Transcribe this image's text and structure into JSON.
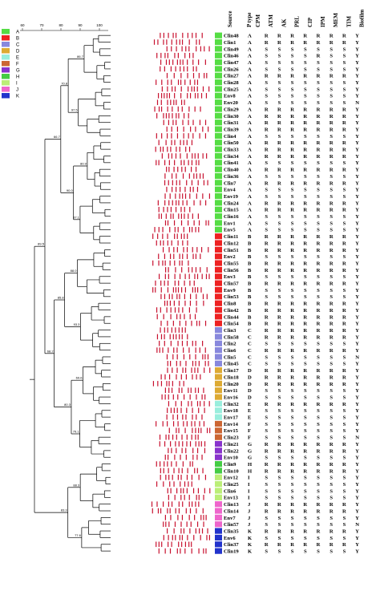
{
  "headers": [
    "Source",
    "P type",
    "CPM",
    "ATM",
    "AK",
    "PRL",
    "CIP",
    "IPM",
    "MEM",
    "TIM",
    "Biofilm"
  ],
  "legend": [
    {
      "label": "A",
      "color": "#55dd44"
    },
    {
      "label": "B",
      "color": "#ee2222"
    },
    {
      "label": "C",
      "color": "#8888dd"
    },
    {
      "label": "D",
      "color": "#ddaa33"
    },
    {
      "label": "E",
      "color": "#99eedd"
    },
    {
      "label": "F",
      "color": "#cc6633"
    },
    {
      "label": "G",
      "color": "#8833cc"
    },
    {
      "label": "H",
      "color": "#44cc44"
    },
    {
      "label": "I",
      "color": "#bbee77"
    },
    {
      "label": "J",
      "color": "#ee66cc"
    },
    {
      "label": "K",
      "color": "#2233cc"
    }
  ],
  "rows": [
    {
      "src": "Clin48",
      "p": "A",
      "v": [
        "R",
        "R",
        "R",
        "R",
        "R",
        "R",
        "R",
        "Y"
      ]
    },
    {
      "src": "Clin1",
      "p": "A",
      "v": [
        "R",
        "R",
        "R",
        "R",
        "R",
        "R",
        "R",
        "Y"
      ]
    },
    {
      "src": "Clin49",
      "p": "A",
      "v": [
        "S",
        "S",
        "S",
        "S",
        "S",
        "S",
        "S",
        "Y"
      ]
    },
    {
      "src": "Clin46",
      "p": "A",
      "v": [
        "S",
        "S",
        "S",
        "S",
        "R",
        "S",
        "S",
        "Y"
      ]
    },
    {
      "src": "Clin47",
      "p": "A",
      "v": [
        "S",
        "S",
        "S",
        "S",
        "S",
        "S",
        "S",
        "Y"
      ]
    },
    {
      "src": "Clin26",
      "p": "A",
      "v": [
        "S",
        "S",
        "S",
        "S",
        "S",
        "S",
        "S",
        "Y"
      ]
    },
    {
      "src": "Clin27",
      "p": "A",
      "v": [
        "R",
        "R",
        "R",
        "R",
        "R",
        "R",
        "R",
        "Y"
      ]
    },
    {
      "src": "Clin28",
      "p": "A",
      "v": [
        "S",
        "S",
        "S",
        "S",
        "S",
        "S",
        "S",
        "Y"
      ]
    },
    {
      "src": "Clin25",
      "p": "A",
      "v": [
        "S",
        "S",
        "S",
        "S",
        "S",
        "S",
        "S",
        "Y"
      ]
    },
    {
      "src": "Env8",
      "p": "A",
      "v": [
        "S",
        "S",
        "S",
        "S",
        "S",
        "S",
        "S",
        "Y"
      ]
    },
    {
      "src": "Env20",
      "p": "A",
      "v": [
        "S",
        "S",
        "S",
        "S",
        "S",
        "S",
        "S",
        "N"
      ]
    },
    {
      "src": "Clin29",
      "p": "A",
      "v": [
        "R",
        "R",
        "R",
        "R",
        "R",
        "R",
        "R",
        "Y"
      ]
    },
    {
      "src": "Clin30",
      "p": "A",
      "v": [
        "R",
        "R",
        "R",
        "R",
        "R",
        "R",
        "R",
        "Y"
      ]
    },
    {
      "src": "Clin31",
      "p": "A",
      "v": [
        "R",
        "R",
        "R",
        "R",
        "R",
        "R",
        "R",
        "Y"
      ]
    },
    {
      "src": "Clin39",
      "p": "A",
      "v": [
        "R",
        "R",
        "R",
        "R",
        "R",
        "R",
        "R",
        "Y"
      ]
    },
    {
      "src": "Clin4",
      "p": "A",
      "v": [
        "S",
        "S",
        "S",
        "S",
        "S",
        "S",
        "S",
        "Y"
      ]
    },
    {
      "src": "Clin50",
      "p": "A",
      "v": [
        "R",
        "R",
        "R",
        "R",
        "R",
        "R",
        "R",
        "Y"
      ]
    },
    {
      "src": "Clin33",
      "p": "A",
      "v": [
        "R",
        "R",
        "R",
        "R",
        "R",
        "R",
        "R",
        "Y"
      ]
    },
    {
      "src": "Clin34",
      "p": "A",
      "v": [
        "R",
        "R",
        "R",
        "R",
        "R",
        "R",
        "R",
        "Y"
      ]
    },
    {
      "src": "Clin41",
      "p": "A",
      "v": [
        "S",
        "S",
        "S",
        "S",
        "S",
        "S",
        "S",
        "Y"
      ]
    },
    {
      "src": "Clin40",
      "p": "A",
      "v": [
        "R",
        "R",
        "R",
        "R",
        "R",
        "R",
        "R",
        "Y"
      ]
    },
    {
      "src": "Clin36",
      "p": "A",
      "v": [
        "S",
        "S",
        "S",
        "S",
        "S",
        "S",
        "S",
        "Y"
      ]
    },
    {
      "src": "Clin7",
      "p": "A",
      "v": [
        "R",
        "R",
        "R",
        "R",
        "R",
        "R",
        "R",
        "Y"
      ]
    },
    {
      "src": "Env4",
      "p": "A",
      "v": [
        "S",
        "S",
        "S",
        "S",
        "S",
        "S",
        "S",
        "Y"
      ]
    },
    {
      "src": "Env19",
      "p": "A",
      "v": [
        "S",
        "S",
        "S",
        "S",
        "S",
        "S",
        "S",
        "Y"
      ]
    },
    {
      "src": "Clin24",
      "p": "A",
      "v": [
        "R",
        "R",
        "R",
        "R",
        "R",
        "R",
        "R",
        "Y"
      ]
    },
    {
      "src": "Clin15",
      "p": "A",
      "v": [
        "R",
        "R",
        "R",
        "R",
        "R",
        "R",
        "R",
        "Y"
      ]
    },
    {
      "src": "Clin16",
      "p": "A",
      "v": [
        "S",
        "S",
        "S",
        "S",
        "S",
        "S",
        "S",
        "Y"
      ]
    },
    {
      "src": "Env1",
      "p": "A",
      "v": [
        "S",
        "S",
        "S",
        "S",
        "S",
        "S",
        "S",
        "Y"
      ]
    },
    {
      "src": "Env5",
      "p": "A",
      "v": [
        "S",
        "S",
        "S",
        "S",
        "S",
        "S",
        "S",
        "Y"
      ]
    },
    {
      "src": "Clin11",
      "p": "B",
      "v": [
        "R",
        "R",
        "R",
        "R",
        "R",
        "R",
        "R",
        "Y"
      ]
    },
    {
      "src": "Clin12",
      "p": "B",
      "v": [
        "R",
        "R",
        "R",
        "R",
        "R",
        "R",
        "R",
        "Y"
      ]
    },
    {
      "src": "Clin51",
      "p": "B",
      "v": [
        "R",
        "R",
        "R",
        "R",
        "R",
        "R",
        "R",
        "Y"
      ]
    },
    {
      "src": "Env2",
      "p": "B",
      "v": [
        "S",
        "S",
        "S",
        "S",
        "S",
        "S",
        "S",
        "Y"
      ]
    },
    {
      "src": "Clin55",
      "p": "B",
      "v": [
        "R",
        "R",
        "R",
        "R",
        "R",
        "R",
        "R",
        "Y"
      ]
    },
    {
      "src": "Clin56",
      "p": "B",
      "v": [
        "R",
        "R",
        "R",
        "R",
        "R",
        "R",
        "R",
        "Y"
      ]
    },
    {
      "src": "Env3",
      "p": "B",
      "v": [
        "S",
        "S",
        "S",
        "S",
        "S",
        "S",
        "S",
        "Y"
      ]
    },
    {
      "src": "Clin57",
      "p": "B",
      "v": [
        "R",
        "R",
        "R",
        "R",
        "R",
        "R",
        "R",
        "Y"
      ]
    },
    {
      "src": "Env9",
      "p": "B",
      "v": [
        "S",
        "S",
        "S",
        "S",
        "S",
        "S",
        "S",
        "Y"
      ]
    },
    {
      "src": "Clin53",
      "p": "B",
      "v": [
        "S",
        "S",
        "S",
        "S",
        "S",
        "S",
        "S",
        "Y"
      ]
    },
    {
      "src": "Clin8",
      "p": "B",
      "v": [
        "R",
        "R",
        "R",
        "R",
        "R",
        "R",
        "R",
        "Y"
      ]
    },
    {
      "src": "Clin42",
      "p": "B",
      "v": [
        "R",
        "R",
        "R",
        "R",
        "R",
        "R",
        "R",
        "Y"
      ]
    },
    {
      "src": "Clin44",
      "p": "B",
      "v": [
        "R",
        "R",
        "R",
        "R",
        "R",
        "R",
        "R",
        "Y"
      ]
    },
    {
      "src": "Clin54",
      "p": "B",
      "v": [
        "R",
        "R",
        "R",
        "R",
        "R",
        "R",
        "R",
        "Y"
      ]
    },
    {
      "src": "Clin3",
      "p": "C",
      "v": [
        "R",
        "R",
        "R",
        "R",
        "R",
        "R",
        "R",
        "Y"
      ]
    },
    {
      "src": "Clin58",
      "p": "C",
      "v": [
        "R",
        "R",
        "R",
        "R",
        "R",
        "R",
        "R",
        "Y"
      ]
    },
    {
      "src": "Clin2",
      "p": "C",
      "v": [
        "S",
        "S",
        "S",
        "S",
        "S",
        "S",
        "S",
        "Y"
      ]
    },
    {
      "src": "Clin6",
      "p": "C",
      "v": [
        "R",
        "R",
        "R",
        "R",
        "R",
        "R",
        "R",
        "Y"
      ]
    },
    {
      "src": "Clin5",
      "p": "C",
      "v": [
        "S",
        "S",
        "S",
        "S",
        "S",
        "S",
        "S",
        "N"
      ]
    },
    {
      "src": "Clin45",
      "p": "C",
      "v": [
        "S",
        "S",
        "S",
        "S",
        "S",
        "S",
        "S",
        "Y"
      ]
    },
    {
      "src": "Clin17",
      "p": "D",
      "v": [
        "R",
        "R",
        "R",
        "R",
        "R",
        "R",
        "R",
        "Y"
      ]
    },
    {
      "src": "Clin18",
      "p": "D",
      "v": [
        "R",
        "R",
        "R",
        "R",
        "R",
        "R",
        "R",
        "Y"
      ]
    },
    {
      "src": "Clin20",
      "p": "D",
      "v": [
        "R",
        "R",
        "R",
        "R",
        "R",
        "R",
        "R",
        "Y"
      ]
    },
    {
      "src": "Env11",
      "p": "D",
      "v": [
        "S",
        "S",
        "S",
        "S",
        "S",
        "S",
        "S",
        "Y"
      ]
    },
    {
      "src": "Env16",
      "p": "D",
      "v": [
        "S",
        "S",
        "S",
        "S",
        "S",
        "S",
        "S",
        "Y"
      ]
    },
    {
      "src": "Clin32",
      "p": "E",
      "v": [
        "R",
        "R",
        "R",
        "R",
        "R",
        "R",
        "R",
        "Y"
      ]
    },
    {
      "src": "Env18",
      "p": "E",
      "v": [
        "S",
        "S",
        "S",
        "S",
        "S",
        "S",
        "S",
        "Y"
      ]
    },
    {
      "src": "Env17",
      "p": "E",
      "v": [
        "S",
        "S",
        "S",
        "S",
        "S",
        "S",
        "S",
        "Y"
      ]
    },
    {
      "src": "Env14",
      "p": "F",
      "v": [
        "S",
        "S",
        "S",
        "S",
        "S",
        "S",
        "S",
        "Y"
      ]
    },
    {
      "src": "Env15",
      "p": "F",
      "v": [
        "S",
        "S",
        "S",
        "S",
        "S",
        "S",
        "S",
        "Y"
      ]
    },
    {
      "src": "Clin23",
      "p": "F",
      "v": [
        "S",
        "S",
        "S",
        "S",
        "S",
        "S",
        "S",
        "N"
      ]
    },
    {
      "src": "Clin21",
      "p": "G",
      "v": [
        "R",
        "R",
        "R",
        "R",
        "R",
        "R",
        "R",
        "Y"
      ]
    },
    {
      "src": "Clin22",
      "p": "G",
      "v": [
        "R",
        "R",
        "R",
        "R",
        "R",
        "R",
        "R",
        "Y"
      ]
    },
    {
      "src": "Env10",
      "p": "G",
      "v": [
        "S",
        "S",
        "S",
        "S",
        "S",
        "S",
        "S",
        "Y"
      ]
    },
    {
      "src": "Clin9",
      "p": "H",
      "v": [
        "R",
        "R",
        "R",
        "R",
        "R",
        "R",
        "R",
        "Y"
      ]
    },
    {
      "src": "Clin10",
      "p": "H",
      "v": [
        "R",
        "R",
        "R",
        "R",
        "R",
        "R",
        "R",
        "Y"
      ]
    },
    {
      "src": "Env12",
      "p": "I",
      "v": [
        "S",
        "S",
        "S",
        "S",
        "S",
        "S",
        "S",
        "Y"
      ]
    },
    {
      "src": "Clin25",
      "p": "I",
      "v": [
        "S",
        "S",
        "S",
        "S",
        "S",
        "S",
        "S",
        "Y"
      ]
    },
    {
      "src": "Clin6",
      "p": "I",
      "v": [
        "S",
        "S",
        "S",
        "S",
        "S",
        "S",
        "S",
        "Y"
      ]
    },
    {
      "src": "Env13",
      "p": "I",
      "v": [
        "S",
        "S",
        "S",
        "S",
        "S",
        "S",
        "S",
        "Y"
      ]
    },
    {
      "src": "Clin13",
      "p": "J",
      "v": [
        "R",
        "R",
        "R",
        "R",
        "R",
        "R",
        "R",
        "Y"
      ]
    },
    {
      "src": "Clin14",
      "p": "J",
      "v": [
        "R",
        "R",
        "R",
        "R",
        "R",
        "R",
        "R",
        "Y"
      ]
    },
    {
      "src": "Env7",
      "p": "J",
      "v": [
        "S",
        "S",
        "S",
        "S",
        "S",
        "S",
        "S",
        "Y"
      ]
    },
    {
      "src": "Clin57",
      "p": "J",
      "v": [
        "S",
        "S",
        "S",
        "S",
        "S",
        "S",
        "S",
        "N"
      ]
    },
    {
      "src": "Clin35",
      "p": "K",
      "v": [
        "R",
        "R",
        "R",
        "R",
        "R",
        "R",
        "R",
        "Y"
      ]
    },
    {
      "src": "Env6",
      "p": "K",
      "v": [
        "S",
        "S",
        "S",
        "S",
        "S",
        "S",
        "S",
        "Y"
      ]
    },
    {
      "src": "Clin37",
      "p": "K",
      "v": [
        "R",
        "R",
        "R",
        "R",
        "R",
        "R",
        "R",
        "Y"
      ]
    },
    {
      "src": "Clin19",
      "p": "K",
      "v": [
        "S",
        "S",
        "S",
        "S",
        "S",
        "S",
        "S",
        "Y"
      ]
    }
  ],
  "scale_ticks": [
    "60",
    "70",
    "80",
    "90",
    "100"
  ],
  "node_labels": [
    "86.7",
    "97.5",
    "80.9",
    "87.1",
    "88.0",
    "93.3",
    "69.6",
    "79.1",
    "88.3",
    "77.6",
    "70.8",
    "90.0",
    "85.8",
    "80.3",
    "83.3",
    "66.7",
    "68.2",
    "89.5"
  ]
}
